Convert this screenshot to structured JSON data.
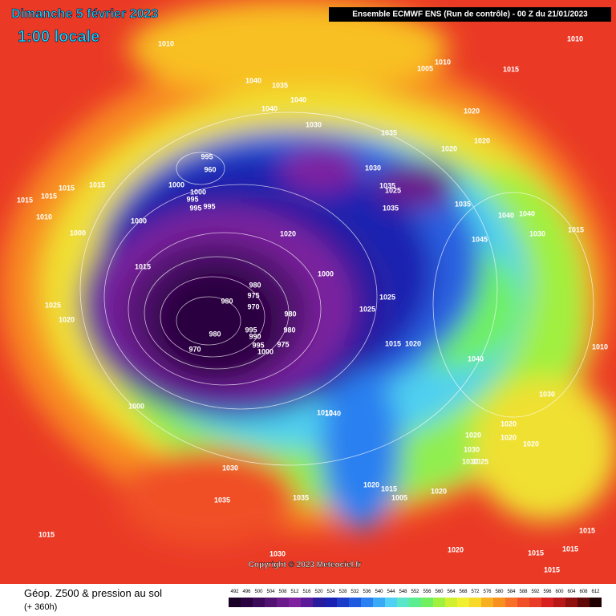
{
  "header": {
    "title": "Dimanche 5 février 2023",
    "time": "1:00 locale",
    "run": "Ensemble ECMWF ENS  (Run de contrôle)  -  00 Z du 21/01/2023"
  },
  "footer": {
    "copyright": "Copyright © 2023 Meteociel.fr",
    "field": "Géop. Z500 & pression au sol",
    "lead": "(+ 360h)"
  },
  "scale": {
    "values": [
      492,
      496,
      500,
      504,
      508,
      512,
      516,
      520,
      524,
      528,
      532,
      536,
      540,
      544,
      548,
      552,
      556,
      560,
      564,
      568,
      572,
      576,
      580,
      584,
      588,
      592,
      596,
      600,
      604,
      608,
      612
    ],
    "colors": [
      "#1a0026",
      "#2a0040",
      "#3d0a5a",
      "#521272",
      "#6a1a8a",
      "#7e22a0",
      "#5a1a9a",
      "#2a1a9c",
      "#1a20b0",
      "#1a3cc8",
      "#1e5ae0",
      "#2a80f0",
      "#3aaaf6",
      "#50d0f4",
      "#5ae6c8",
      "#5aee90",
      "#70f060",
      "#a0f040",
      "#d0f030",
      "#f0f030",
      "#f8d828",
      "#f8b020",
      "#f89020",
      "#f87028",
      "#f05028",
      "#e83c28",
      "#d82020",
      "#b81818",
      "#901010",
      "#600808",
      "#200000"
    ]
  },
  "pressure_labels": [
    1010,
    1040,
    1035,
    1040,
    1040,
    1030,
    1005,
    1010,
    1015,
    1010,
    1020,
    1035,
    1020,
    1020,
    995,
    960,
    1000,
    1000,
    995,
    995,
    995,
    1030,
    1035,
    1025,
    1035,
    1015,
    1015,
    1015,
    1015,
    1010,
    1000,
    1000,
    1020,
    1035,
    1040,
    1040,
    1045,
    1030,
    1015,
    1000,
    1015,
    980,
    975,
    970,
    980,
    1025,
    1020,
    1025,
    1025,
    980,
    980,
    995,
    990,
    995,
    975,
    980,
    970,
    1000,
    1015,
    1020,
    1040,
    1010,
    1000,
    1010,
    1040,
    1030,
    1020,
    1020,
    1020,
    1030,
    1030,
    1025,
    1020,
    1030,
    1035,
    1035,
    1020,
    1015,
    1005,
    1020,
    1015,
    1015,
    1030,
    1020,
    1015,
    1015,
    1015
  ]
}
